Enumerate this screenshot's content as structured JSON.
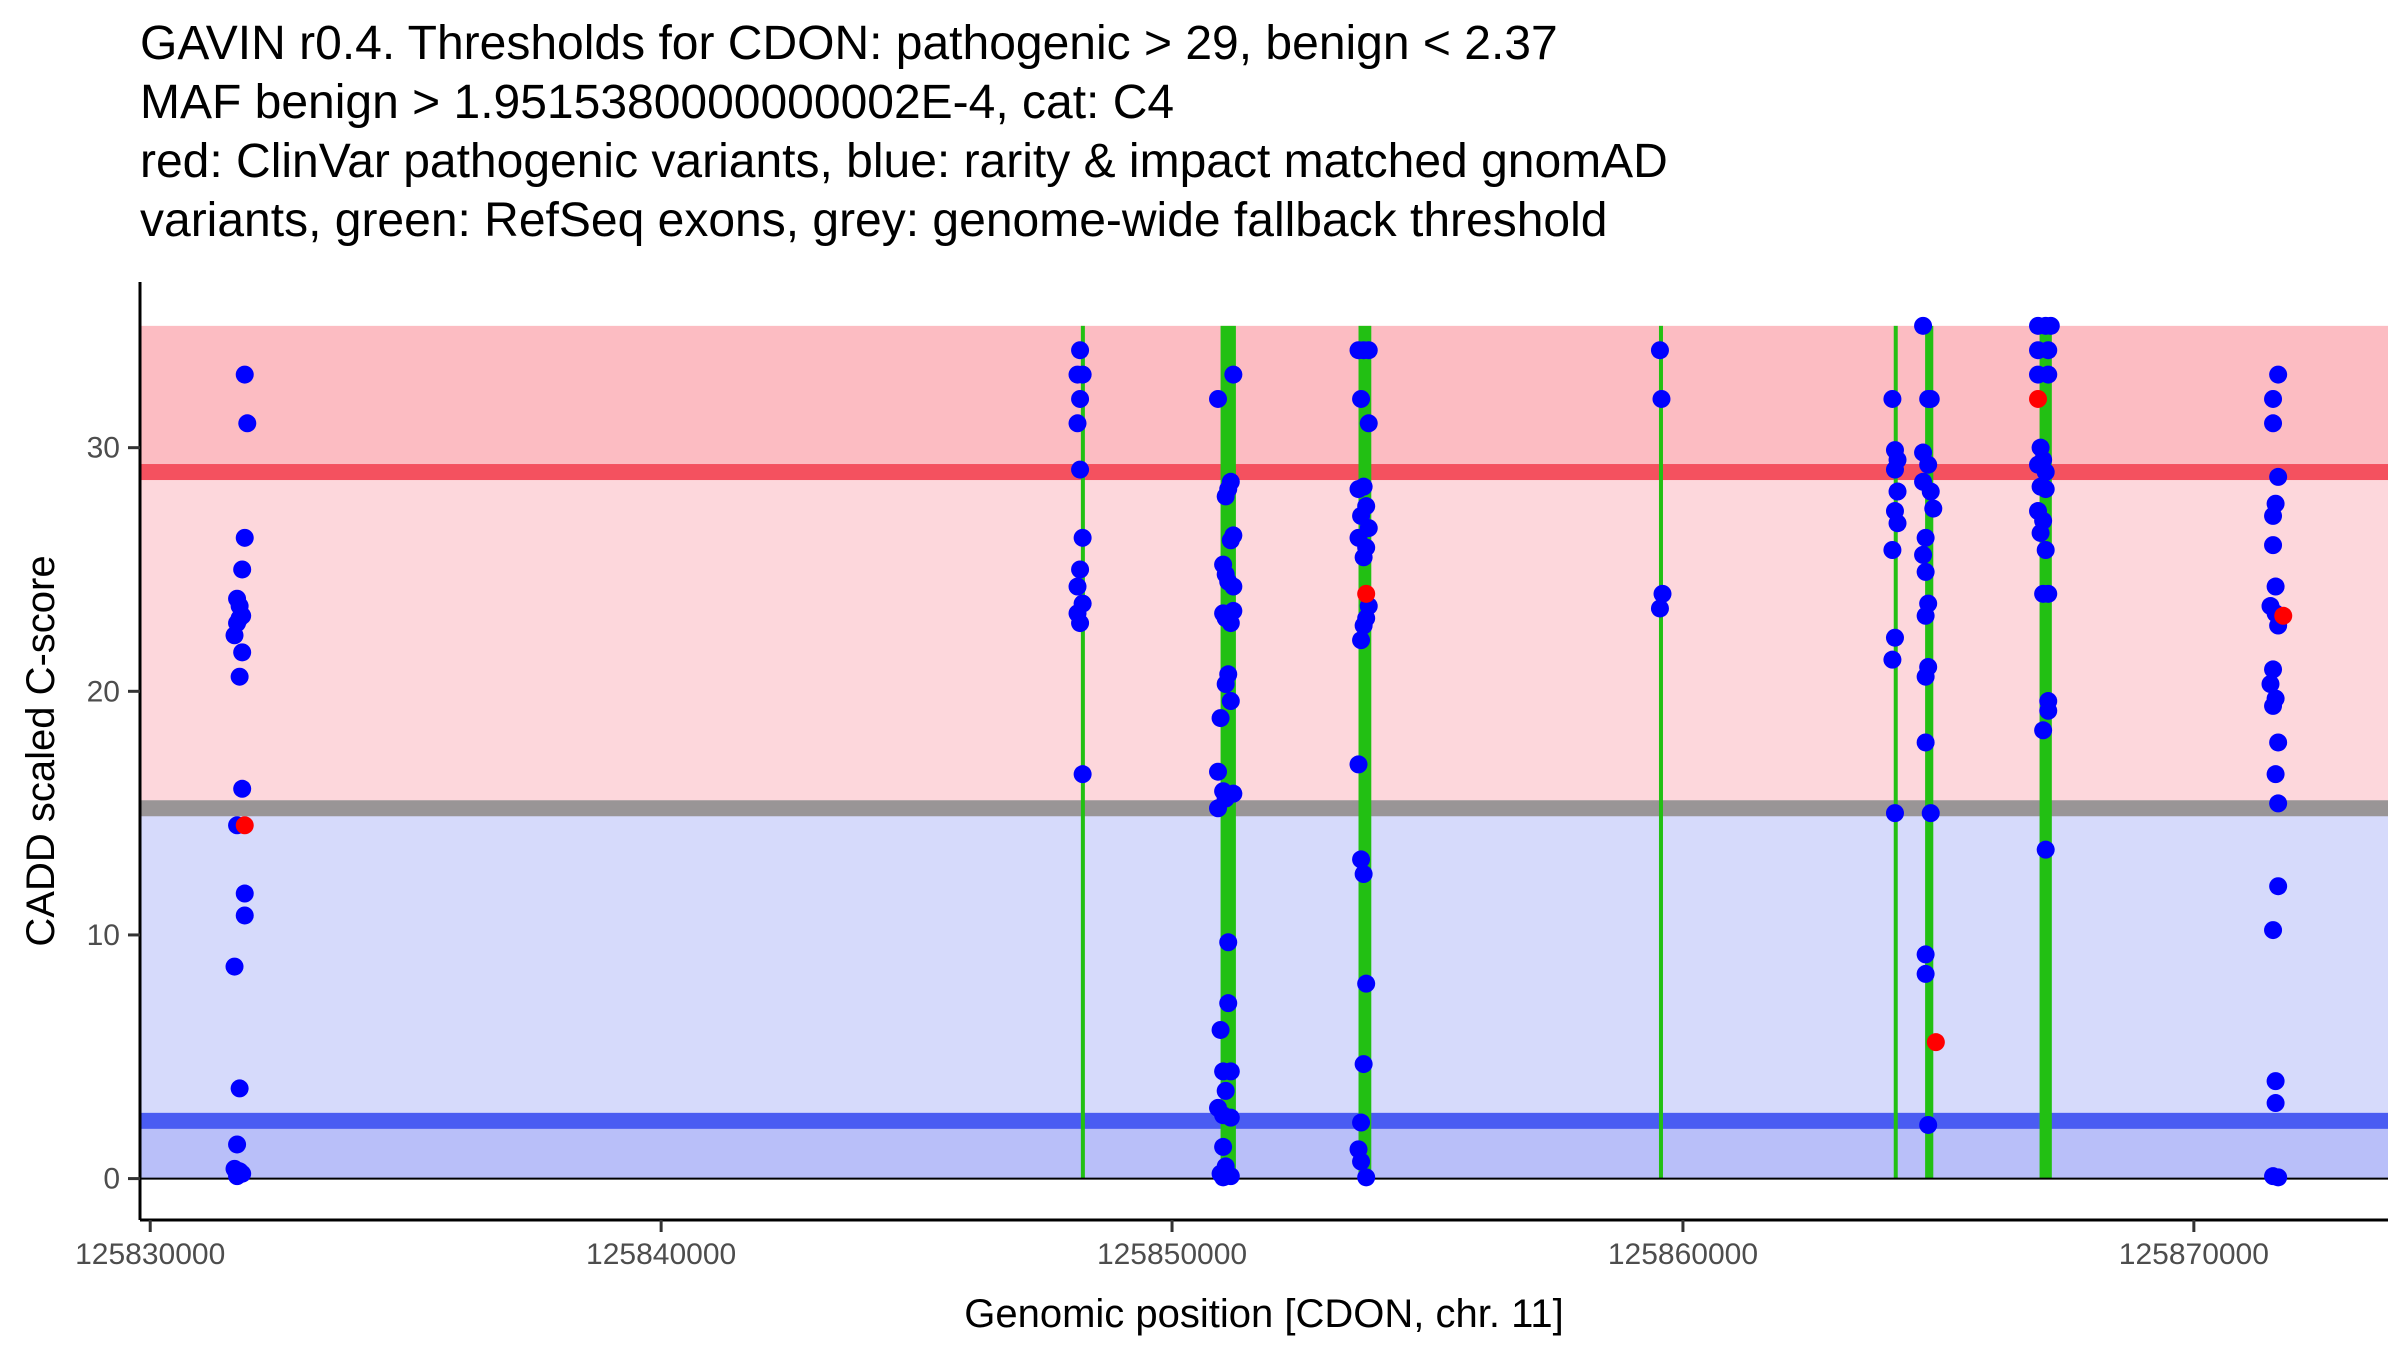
{
  "title_lines": [
    "GAVIN r0.4. Thresholds for CDON: pathogenic > 29, benign < 2.37",
    "MAF benign > 1.9515380000000002E-4, cat: C4",
    "red: ClinVar pathogenic variants, blue: rarity & impact matched gnomAD",
    "variants, green: RefSeq exons, grey: genome-wide fallback threshold"
  ],
  "chart_data": {
    "type": "scatter",
    "title": "GAVIN r0.4. Thresholds for CDON: pathogenic > 29, benign < 2.37 MAF benign > 1.9515380000000002E-4, cat: C4 red: ClinVar pathogenic variants, blue: rarity & impact matched gnomAD variants, green: RefSeq exons, grey: genome-wide fallback threshold",
    "xlabel": "Genomic position [CDON, chr. 11]",
    "ylabel": "CADD scaled C-score",
    "xlim": [
      125829800,
      125873800
    ],
    "ylim": [
      -1.7,
      36.8
    ],
    "x_ticks": [
      125830000,
      125840000,
      125850000,
      125860000,
      125870000
    ],
    "x_tick_labels": [
      "125830000",
      "125840000",
      "125850000",
      "125860000",
      "125870000"
    ],
    "y_ticks": [
      0,
      10,
      20,
      30
    ],
    "y_tick_labels": [
      "0",
      "10",
      "20",
      "30"
    ],
    "colors": {
      "pathogenic_band": "#fcbcc2",
      "mid_pathogenic_band": "#fdd7dc",
      "mid_benign_band": "#d6dafb",
      "benign_band": "#b9bff9",
      "pathogenic_line": "#f4515f",
      "fallback_line": "#999596",
      "benign_line": "#4a5cf2",
      "exon": "#22c013",
      "gnomad_point": "#0000ff",
      "clinvar_point": "#ff0000"
    },
    "bands": [
      {
        "name": "pathogenic",
        "from": 29,
        "to": 35
      },
      {
        "name": "mid-pathogenic",
        "from": 15.2,
        "to": 29
      },
      {
        "name": "mid-benign",
        "from": 2.37,
        "to": 15.2
      },
      {
        "name": "benign",
        "from": 0,
        "to": 2.37
      }
    ],
    "threshold_lines": [
      {
        "name": "pathogenic threshold",
        "y": 29
      },
      {
        "name": "fallback threshold",
        "y": 15.2
      },
      {
        "name": "benign threshold",
        "y": 2.37
      }
    ],
    "exons": [
      {
        "start": 125848220,
        "end": 125848290
      },
      {
        "start": 125850950,
        "end": 125851250
      },
      {
        "start": 125853650,
        "end": 125853900
      },
      {
        "start": 125859540,
        "end": 125859600
      },
      {
        "start": 125864130,
        "end": 125864200
      },
      {
        "start": 125864740,
        "end": 125864900
      },
      {
        "start": 125866980,
        "end": 125867220
      }
    ],
    "series": [
      {
        "name": "gnomAD (rarity & impact matched)",
        "points": [
          [
            125831850,
            33
          ],
          [
            125831900,
            31
          ],
          [
            125831850,
            26.3
          ],
          [
            125831800,
            25
          ],
          [
            125831700,
            23.8
          ],
          [
            125831750,
            23.5
          ],
          [
            125831800,
            23.1
          ],
          [
            125831700,
            22.8
          ],
          [
            125831750,
            23
          ],
          [
            125831650,
            22.3
          ],
          [
            125831800,
            21.6
          ],
          [
            125831750,
            20.6
          ],
          [
            125831800,
            16
          ],
          [
            125831700,
            14.5
          ],
          [
            125831850,
            11.7
          ],
          [
            125831850,
            10.8
          ],
          [
            125831650,
            8.7
          ],
          [
            125831750,
            3.7
          ],
          [
            125831700,
            1.4
          ],
          [
            125831650,
            0.4
          ],
          [
            125831800,
            0.2
          ],
          [
            125831700,
            0.1
          ],
          [
            125831750,
            0.3
          ],
          [
            125848200,
            34
          ],
          [
            125848150,
            33
          ],
          [
            125848250,
            33
          ],
          [
            125848200,
            32
          ],
          [
            125848150,
            31
          ],
          [
            125848200,
            29.1
          ],
          [
            125848250,
            26.3
          ],
          [
            125848200,
            25
          ],
          [
            125848150,
            24.3
          ],
          [
            125848250,
            23.6
          ],
          [
            125848150,
            23.2
          ],
          [
            125848200,
            22.8
          ],
          [
            125848250,
            16.6
          ],
          [
            125850900,
            32
          ],
          [
            125851200,
            33
          ],
          [
            125851150,
            28.6
          ],
          [
            125851100,
            28.3
          ],
          [
            125851050,
            28
          ],
          [
            125851200,
            26.4
          ],
          [
            125851150,
            26.2
          ],
          [
            125851000,
            25.2
          ],
          [
            125851050,
            24.8
          ],
          [
            125851100,
            24.5
          ],
          [
            125851200,
            24.3
          ],
          [
            125851000,
            23.2
          ],
          [
            125851050,
            23.0
          ],
          [
            125851150,
            22.8
          ],
          [
            125851200,
            23.3
          ],
          [
            125851100,
            20.7
          ],
          [
            125851050,
            20.3
          ],
          [
            125851150,
            19.6
          ],
          [
            125850950,
            18.9
          ],
          [
            125850900,
            16.7
          ],
          [
            125851000,
            15.9
          ],
          [
            125851050,
            15.6
          ],
          [
            125850900,
            15.2
          ],
          [
            125851200,
            15.8
          ],
          [
            125851100,
            9.7
          ],
          [
            125851100,
            7.2
          ],
          [
            125850950,
            6.1
          ],
          [
            125851000,
            4.4
          ],
          [
            125851150,
            4.4
          ],
          [
            125851050,
            3.6
          ],
          [
            125850900,
            2.9
          ],
          [
            125851000,
            2.6
          ],
          [
            125851150,
            2.5
          ],
          [
            125851000,
            1.3
          ],
          [
            125851050,
            0.5
          ],
          [
            125850950,
            0.2
          ],
          [
            125851150,
            0.1
          ],
          [
            125851000,
            0.05
          ],
          [
            125853650,
            34
          ],
          [
            125853750,
            34
          ],
          [
            125853850,
            34
          ],
          [
            125853700,
            32
          ],
          [
            125853850,
            31
          ],
          [
            125853650,
            28.3
          ],
          [
            125853750,
            28.4
          ],
          [
            125853800,
            27.6
          ],
          [
            125853700,
            27.2
          ],
          [
            125853850,
            26.7
          ],
          [
            125853650,
            26.3
          ],
          [
            125853800,
            25.9
          ],
          [
            125853750,
            25.5
          ],
          [
            125853850,
            23.5
          ],
          [
            125853800,
            23.0
          ],
          [
            125853750,
            22.7
          ],
          [
            125853700,
            22.1
          ],
          [
            125853650,
            17
          ],
          [
            125853700,
            13.1
          ],
          [
            125853750,
            12.5
          ],
          [
            125853800,
            8.0
          ],
          [
            125853750,
            4.7
          ],
          [
            125853700,
            2.3
          ],
          [
            125853650,
            1.2
          ],
          [
            125853700,
            0.7
          ],
          [
            125853800,
            0.05
          ],
          [
            125859550,
            34
          ],
          [
            125859580,
            32
          ],
          [
            125859600,
            24
          ],
          [
            125859550,
            23.4
          ],
          [
            125864100,
            32
          ],
          [
            125864150,
            29.9
          ],
          [
            125864200,
            29.5
          ],
          [
            125864150,
            29.1
          ],
          [
            125864200,
            28.2
          ],
          [
            125864150,
            27.4
          ],
          [
            125864200,
            26.9
          ],
          [
            125864100,
            25.8
          ],
          [
            125864150,
            22.2
          ],
          [
            125864100,
            21.3
          ],
          [
            125864150,
            15
          ],
          [
            125864700,
            35
          ],
          [
            125864800,
            32
          ],
          [
            125864850,
            32
          ],
          [
            125864700,
            29.8
          ],
          [
            125864800,
            29.3
          ],
          [
            125864700,
            28.6
          ],
          [
            125864850,
            28.2
          ],
          [
            125864900,
            27.5
          ],
          [
            125864750,
            26.3
          ],
          [
            125864700,
            25.6
          ],
          [
            125864750,
            24.9
          ],
          [
            125864800,
            23.6
          ],
          [
            125864750,
            23.1
          ],
          [
            125864800,
            21
          ],
          [
            125864750,
            20.6
          ],
          [
            125864750,
            17.9
          ],
          [
            125864850,
            15
          ],
          [
            125864750,
            9.2
          ],
          [
            125864750,
            8.4
          ],
          [
            125864800,
            2.2
          ],
          [
            125866950,
            35
          ],
          [
            125867100,
            35
          ],
          [
            125867200,
            35
          ],
          [
            125866950,
            34
          ],
          [
            125867150,
            34
          ],
          [
            125866950,
            33
          ],
          [
            125867150,
            33
          ],
          [
            125867000,
            30
          ],
          [
            125867050,
            29.5
          ],
          [
            125866950,
            29.3
          ],
          [
            125867100,
            29
          ],
          [
            125867000,
            28.4
          ],
          [
            125867100,
            28.3
          ],
          [
            125866950,
            27.4
          ],
          [
            125867050,
            27
          ],
          [
            125867000,
            26.5
          ],
          [
            125867100,
            25.8
          ],
          [
            125867050,
            24
          ],
          [
            125867150,
            24
          ],
          [
            125867150,
            19.6
          ],
          [
            125867150,
            19.2
          ],
          [
            125867050,
            18.4
          ],
          [
            125867100,
            13.5
          ],
          [
            125871650,
            33
          ],
          [
            125871550,
            32
          ],
          [
            125871550,
            31
          ],
          [
            125871650,
            28.8
          ],
          [
            125871600,
            27.7
          ],
          [
            125871550,
            27.2
          ],
          [
            125871550,
            26
          ],
          [
            125871600,
            24.3
          ],
          [
            125871500,
            23.5
          ],
          [
            125871600,
            23.2
          ],
          [
            125871650,
            22.7
          ],
          [
            125871550,
            20.9
          ],
          [
            125871500,
            20.3
          ],
          [
            125871600,
            19.7
          ],
          [
            125871550,
            19.4
          ],
          [
            125871650,
            17.9
          ],
          [
            125871600,
            16.6
          ],
          [
            125871650,
            15.4
          ],
          [
            125871650,
            12
          ],
          [
            125871550,
            10.2
          ],
          [
            125871600,
            4.0
          ],
          [
            125871600,
            3.1
          ],
          [
            125871550,
            0.1
          ],
          [
            125871650,
            0.05
          ]
        ]
      },
      {
        "name": "ClinVar pathogenic",
        "points": [
          [
            125831850,
            14.5
          ],
          [
            125853800,
            24
          ],
          [
            125864950,
            5.6
          ],
          [
            125866950,
            32
          ],
          [
            125871750,
            23.1
          ]
        ]
      }
    ]
  }
}
